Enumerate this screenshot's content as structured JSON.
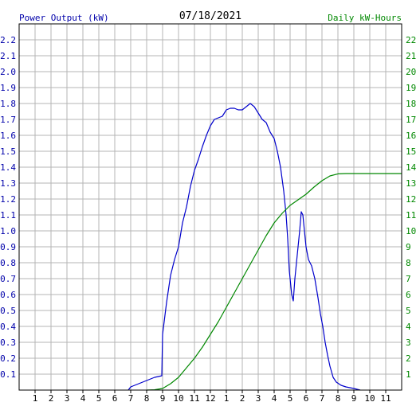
{
  "chart_data": {
    "type": "line",
    "title": "07/18/2021",
    "left_axis_label": "Power Output (kW)",
    "right_axis_label": "Daily kW-Hours",
    "x_ticks": [
      "1",
      "2",
      "3",
      "4",
      "5",
      "6",
      "7",
      "8",
      "9",
      "10",
      "11",
      "12",
      "1",
      "2",
      "3",
      "4",
      "5",
      "6",
      "7",
      "8",
      "9",
      "10",
      "11"
    ],
    "x_tick_hours": [
      1,
      2,
      3,
      4,
      5,
      6,
      7,
      8,
      9,
      10,
      11,
      12,
      13,
      14,
      15,
      16,
      17,
      18,
      19,
      20,
      21,
      22,
      23
    ],
    "xlim_hours": [
      0,
      24
    ],
    "left_ticks": [
      "0.1",
      "0.2",
      "0.3",
      "0.4",
      "0.5",
      "0.6",
      "0.7",
      "0.8",
      "0.9",
      "1.0",
      "1.1",
      "1.2",
      "1.3",
      "1.4",
      "1.5",
      "1.6",
      "1.7",
      "1.8",
      "1.9",
      "2.0",
      "2.1",
      "2.2"
    ],
    "right_ticks": [
      "1",
      "2",
      "3",
      "4",
      "5",
      "6",
      "7",
      "8",
      "9",
      "10",
      "11",
      "12",
      "13",
      "14",
      "15",
      "16",
      "17",
      "18",
      "19",
      "20",
      "21",
      "22"
    ],
    "ylim_left": [
      0,
      2.3
    ],
    "ylim_right": [
      0,
      23
    ],
    "grid": true,
    "colors": {
      "power": "#0000cc",
      "energy": "#008800",
      "title": "#000000",
      "grid": "#b4b4b4",
      "frame": "#000000",
      "left_axis": "#0000aa",
      "right_axis": "#008800"
    },
    "series": [
      {
        "key": "power",
        "axis": "left",
        "points": [
          [
            6.85,
            0.0
          ],
          [
            7.0,
            0.02
          ],
          [
            7.5,
            0.04
          ],
          [
            8.0,
            0.06
          ],
          [
            8.5,
            0.08
          ],
          [
            8.95,
            0.09
          ],
          [
            9.0,
            0.35
          ],
          [
            9.25,
            0.55
          ],
          [
            9.5,
            0.72
          ],
          [
            9.75,
            0.82
          ],
          [
            10.0,
            0.9
          ],
          [
            10.25,
            1.05
          ],
          [
            10.5,
            1.15
          ],
          [
            10.75,
            1.28
          ],
          [
            11.0,
            1.38
          ],
          [
            11.25,
            1.45
          ],
          [
            11.5,
            1.53
          ],
          [
            11.75,
            1.6
          ],
          [
            12.0,
            1.66
          ],
          [
            12.25,
            1.7
          ],
          [
            12.5,
            1.71
          ],
          [
            12.75,
            1.72
          ],
          [
            13.0,
            1.76
          ],
          [
            13.25,
            1.77
          ],
          [
            13.5,
            1.77
          ],
          [
            13.75,
            1.76
          ],
          [
            14.0,
            1.76
          ],
          [
            14.25,
            1.78
          ],
          [
            14.5,
            1.8
          ],
          [
            14.75,
            1.78
          ],
          [
            15.0,
            1.74
          ],
          [
            15.25,
            1.7
          ],
          [
            15.5,
            1.68
          ],
          [
            15.75,
            1.62
          ],
          [
            16.0,
            1.58
          ],
          [
            16.2,
            1.5
          ],
          [
            16.4,
            1.4
          ],
          [
            16.6,
            1.25
          ],
          [
            16.75,
            1.1
          ],
          [
            16.85,
            0.95
          ],
          [
            16.95,
            0.75
          ],
          [
            17.1,
            0.6
          ],
          [
            17.2,
            0.56
          ],
          [
            17.3,
            0.7
          ],
          [
            17.45,
            0.85
          ],
          [
            17.6,
            1.0
          ],
          [
            17.7,
            1.12
          ],
          [
            17.8,
            1.1
          ],
          [
            17.9,
            1.0
          ],
          [
            18.0,
            0.9
          ],
          [
            18.15,
            0.82
          ],
          [
            18.35,
            0.78
          ],
          [
            18.55,
            0.7
          ],
          [
            18.75,
            0.58
          ],
          [
            18.9,
            0.48
          ],
          [
            19.05,
            0.4
          ],
          [
            19.2,
            0.3
          ],
          [
            19.35,
            0.22
          ],
          [
            19.5,
            0.15
          ],
          [
            19.7,
            0.08
          ],
          [
            19.9,
            0.05
          ],
          [
            20.2,
            0.03
          ],
          [
            20.5,
            0.02
          ],
          [
            21.0,
            0.01
          ],
          [
            21.4,
            0.0
          ]
        ]
      },
      {
        "key": "energy",
        "axis": "right",
        "points": [
          [
            8.0,
            0.0
          ],
          [
            8.5,
            0.02
          ],
          [
            9.0,
            0.1
          ],
          [
            9.5,
            0.4
          ],
          [
            10.0,
            0.8
          ],
          [
            10.5,
            1.4
          ],
          [
            11.0,
            2.0
          ],
          [
            11.5,
            2.7
          ],
          [
            12.0,
            3.5
          ],
          [
            12.5,
            4.3
          ],
          [
            13.0,
            5.2
          ],
          [
            13.5,
            6.1
          ],
          [
            14.0,
            7.0
          ],
          [
            14.5,
            7.9
          ],
          [
            15.0,
            8.8
          ],
          [
            15.5,
            9.7
          ],
          [
            16.0,
            10.5
          ],
          [
            16.5,
            11.1
          ],
          [
            17.0,
            11.6
          ],
          [
            17.5,
            11.95
          ],
          [
            18.0,
            12.3
          ],
          [
            18.5,
            12.75
          ],
          [
            19.0,
            13.15
          ],
          [
            19.5,
            13.45
          ],
          [
            20.0,
            13.58
          ],
          [
            20.5,
            13.6
          ],
          [
            21.0,
            13.6
          ],
          [
            22.0,
            13.6
          ],
          [
            23.0,
            13.6
          ],
          [
            24.0,
            13.6
          ]
        ]
      }
    ]
  }
}
